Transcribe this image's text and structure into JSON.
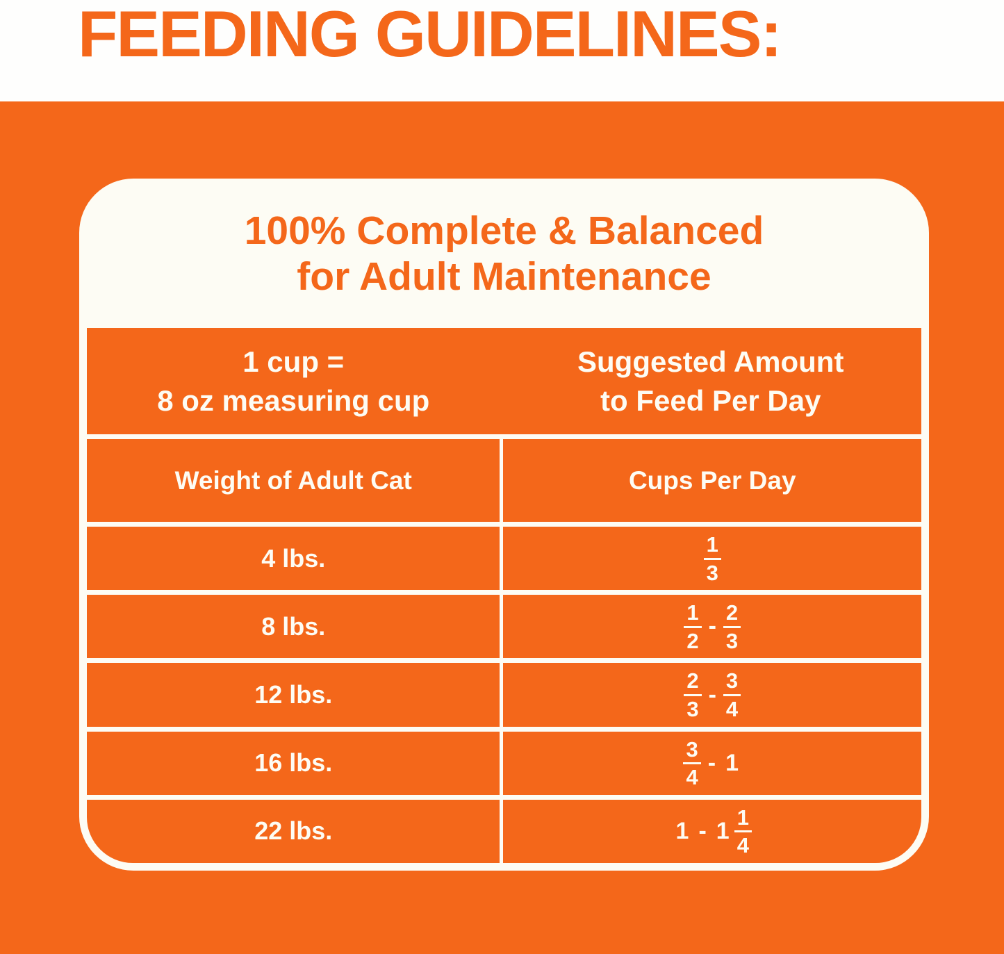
{
  "title": "FEEDING GUIDELINES:",
  "colors": {
    "orange": "#F4671A",
    "white": "#FDFCF4"
  },
  "card": {
    "heading_line1": "100% Complete & Balanced",
    "heading_line2": "for Adult Maintenance",
    "table": {
      "measure_header_line1": "1 cup =",
      "measure_header_line2": "8 oz measuring cup",
      "amount_header_line1": "Suggested Amount",
      "amount_header_line2": "to Feed Per Day",
      "columns": [
        "Weight of Adult Cat",
        "Cups Per Day"
      ],
      "rows": [
        {
          "weight": "4 lbs.",
          "cups": [
            {
              "t": "frac",
              "n": "1",
              "d": "3"
            }
          ]
        },
        {
          "weight": "8 lbs.",
          "cups": [
            {
              "t": "frac",
              "n": "1",
              "d": "2"
            },
            {
              "t": "text",
              "v": "-"
            },
            {
              "t": "frac",
              "n": "2",
              "d": "3"
            }
          ]
        },
        {
          "weight": "12 lbs.",
          "cups": [
            {
              "t": "frac",
              "n": "2",
              "d": "3"
            },
            {
              "t": "text",
              "v": "-"
            },
            {
              "t": "frac",
              "n": "3",
              "d": "4"
            }
          ]
        },
        {
          "weight": "16 lbs.",
          "cups": [
            {
              "t": "frac",
              "n": "3",
              "d": "4"
            },
            {
              "t": "text",
              "v": "-"
            },
            {
              "t": "text",
              "v": "1"
            }
          ]
        },
        {
          "weight": "22 lbs.",
          "cups": [
            {
              "t": "text",
              "v": "1"
            },
            {
              "t": "text",
              "v": "-"
            },
            {
              "t": "text",
              "v": "1"
            },
            {
              "t": "frac",
              "n": "1",
              "d": "4",
              "attached": true
            }
          ]
        }
      ]
    }
  }
}
